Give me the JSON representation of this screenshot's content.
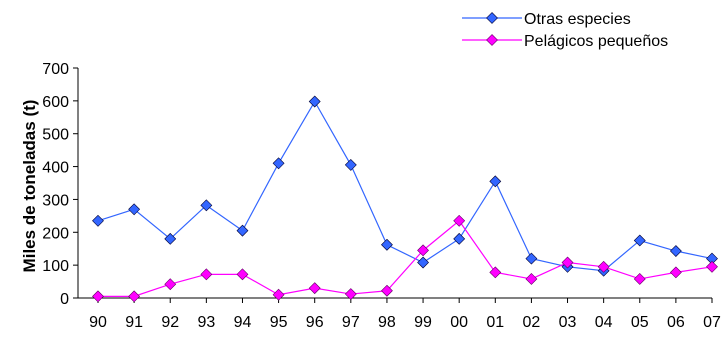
{
  "chart_data": {
    "type": "line",
    "title": "",
    "xlabel": "",
    "ylabel": "Miles de toneladas (t)",
    "categories": [
      "90",
      "91",
      "92",
      "93",
      "94",
      "95",
      "96",
      "97",
      "98",
      "99",
      "00",
      "01",
      "02",
      "03",
      "04",
      "05",
      "06",
      "07"
    ],
    "ylim": [
      0,
      700
    ],
    "yticks": [
      0,
      100,
      200,
      300,
      400,
      500,
      600,
      700
    ],
    "grid": false,
    "legend_position": "top-right",
    "series": [
      {
        "name": "Otras especies",
        "color": "#3366FF",
        "marker": "diamond",
        "values": [
          235,
          270,
          180,
          282,
          205,
          410,
          598,
          405,
          162,
          108,
          180,
          355,
          120,
          95,
          83,
          175,
          143,
          120
        ]
      },
      {
        "name": "Pelágicos pequeños",
        "color": "#FF00FF",
        "marker": "diamond",
        "values": [
          5,
          5,
          42,
          72,
          72,
          10,
          30,
          12,
          22,
          145,
          235,
          78,
          58,
          108,
          95,
          58,
          78,
          95
        ]
      }
    ]
  }
}
